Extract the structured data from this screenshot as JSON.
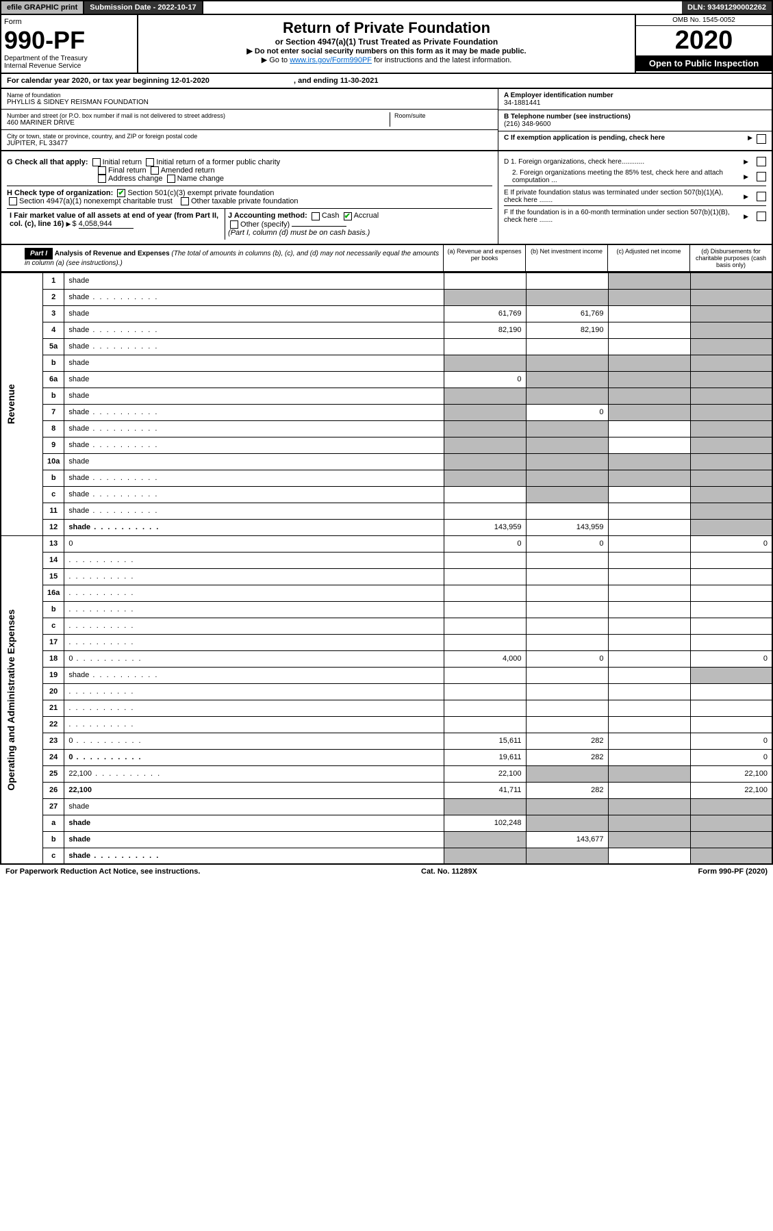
{
  "top": {
    "efile": "efile GRAPHIC print",
    "submission": "Submission Date - 2022-10-17",
    "dln": "DLN: 93491290002262"
  },
  "header": {
    "form_label": "Form",
    "form_no": "990-PF",
    "dept": "Department of the Treasury\nInternal Revenue Service",
    "title": "Return of Private Foundation",
    "subtitle": "or Section 4947(a)(1) Trust Treated as Private Foundation",
    "note1": "▶ Do not enter social security numbers on this form as it may be made public.",
    "note2_pre": "▶ Go to ",
    "note2_link": "www.irs.gov/Form990PF",
    "note2_post": " for instructions and the latest information.",
    "omb": "OMB No. 1545-0052",
    "year": "2020",
    "open": "Open to Public Inspection"
  },
  "cal": {
    "text_pre": "For calendar year 2020, or tax year beginning ",
    "begin": "12-01-2020",
    "mid": " , and ending ",
    "end": "11-30-2021"
  },
  "info": {
    "name_lbl": "Name of foundation",
    "name": "PHYLLIS & SIDNEY REISMAN FOUNDATION",
    "addr_lbl": "Number and street (or P.O. box number if mail is not delivered to street address)",
    "addr": "460 MARINER DRIVE",
    "room_lbl": "Room/suite",
    "city_lbl": "City or town, state or province, country, and ZIP or foreign postal code",
    "city": "JUPITER, FL  33477",
    "a_lbl": "A Employer identification number",
    "a_val": "34-1881441",
    "b_lbl": "B Telephone number (see instructions)",
    "b_val": "(216) 348-9600",
    "c_lbl": "C If exemption application is pending, check here"
  },
  "checks": {
    "g_lbl": "G Check all that apply:",
    "g_opts": [
      "Initial return",
      "Initial return of a former public charity",
      "Final return",
      "Amended return",
      "Address change",
      "Name change"
    ],
    "h_lbl": "H Check type of organization:",
    "h_opt1": "Section 501(c)(3) exempt private foundation",
    "h_opt2": "Section 4947(a)(1) nonexempt charitable trust",
    "h_opt3": "Other taxable private foundation",
    "i_lbl": "I Fair market value of all assets at end of year (from Part II, col. (c), line 16)",
    "i_val": "4,058,944",
    "j_lbl": "J Accounting method:",
    "j_opts": [
      "Cash",
      "Accrual"
    ],
    "j_other": "Other (specify)",
    "j_note": "(Part I, column (d) must be on cash basis.)",
    "d1": "D 1. Foreign organizations, check here............",
    "d2": "2. Foreign organizations meeting the 85% test, check here and attach computation ...",
    "e": "E  If private foundation status was terminated under section 507(b)(1)(A), check here .......",
    "f": "F  If the foundation is in a 60-month termination under section 507(b)(1)(B), check here ......."
  },
  "part1": {
    "label": "Part I",
    "title": "Analysis of Revenue and Expenses",
    "title_note": "(The total of amounts in columns (b), (c), and (d) may not necessarily equal the amounts in column (a) (see instructions).)",
    "col_a": "(a)   Revenue and expenses per books",
    "col_b": "(b)   Net investment income",
    "col_c": "(c)   Adjusted net income",
    "col_d": "(d)   Disbursements for charitable purposes (cash basis only)"
  },
  "side_labels": {
    "revenue": "Revenue",
    "expenses": "Operating and Administrative Expenses"
  },
  "rows": [
    {
      "n": "1",
      "d": "shade",
      "a": "",
      "b": "",
      "c": "shade"
    },
    {
      "n": "2",
      "d": "shade",
      "a": "shade",
      "b": "shade",
      "c": "shade",
      "dots": true
    },
    {
      "n": "3",
      "d": "shade",
      "a": "61,769",
      "b": "61,769",
      "c": ""
    },
    {
      "n": "4",
      "d": "shade",
      "a": "82,190",
      "b": "82,190",
      "c": "",
      "dots": true
    },
    {
      "n": "5a",
      "d": "shade",
      "a": "",
      "b": "",
      "c": "",
      "dots": true
    },
    {
      "n": "b",
      "d": "shade",
      "a": "shade",
      "b": "shade",
      "c": "shade"
    },
    {
      "n": "6a",
      "d": "shade",
      "a": "0",
      "b": "shade",
      "c": "shade"
    },
    {
      "n": "b",
      "d": "shade",
      "a": "shade",
      "b": "shade",
      "c": "shade"
    },
    {
      "n": "7",
      "d": "shade",
      "a": "shade",
      "b": "0",
      "c": "shade",
      "dots": true
    },
    {
      "n": "8",
      "d": "shade",
      "a": "shade",
      "b": "shade",
      "c": "",
      "dots": true
    },
    {
      "n": "9",
      "d": "shade",
      "a": "shade",
      "b": "shade",
      "c": "",
      "dots": true
    },
    {
      "n": "10a",
      "d": "shade",
      "a": "shade",
      "b": "shade",
      "c": "shade"
    },
    {
      "n": "b",
      "d": "shade",
      "a": "shade",
      "b": "shade",
      "c": "shade",
      "dots": true
    },
    {
      "n": "c",
      "d": "shade",
      "a": "",
      "b": "shade",
      "c": "",
      "dots": true
    },
    {
      "n": "11",
      "d": "shade",
      "a": "",
      "b": "",
      "c": "",
      "dots": true
    },
    {
      "n": "12",
      "d": "shade",
      "a": "143,959",
      "b": "143,959",
      "c": "",
      "bold": true,
      "dots": true
    }
  ],
  "rows2": [
    {
      "n": "13",
      "d": "0",
      "a": "0",
      "b": "0",
      "c": ""
    },
    {
      "n": "14",
      "d": "",
      "a": "",
      "b": "",
      "c": "",
      "dots": true
    },
    {
      "n": "15",
      "d": "",
      "a": "",
      "b": "",
      "c": "",
      "dots": true
    },
    {
      "n": "16a",
      "d": "",
      "a": "",
      "b": "",
      "c": "",
      "dots": true
    },
    {
      "n": "b",
      "d": "",
      "a": "",
      "b": "",
      "c": "",
      "dots": true
    },
    {
      "n": "c",
      "d": "",
      "a": "",
      "b": "",
      "c": "",
      "dots": true
    },
    {
      "n": "17",
      "d": "",
      "a": "",
      "b": "",
      "c": "",
      "dots": true
    },
    {
      "n": "18",
      "d": "0",
      "a": "4,000",
      "b": "0",
      "c": "",
      "dots": true
    },
    {
      "n": "19",
      "d": "shade",
      "a": "",
      "b": "",
      "c": "",
      "dots": true
    },
    {
      "n": "20",
      "d": "",
      "a": "",
      "b": "",
      "c": "",
      "dots": true
    },
    {
      "n": "21",
      "d": "",
      "a": "",
      "b": "",
      "c": "",
      "dots": true
    },
    {
      "n": "22",
      "d": "",
      "a": "",
      "b": "",
      "c": "",
      "dots": true
    },
    {
      "n": "23",
      "d": "0",
      "a": "15,611",
      "b": "282",
      "c": "",
      "dots": true
    },
    {
      "n": "24",
      "d": "0",
      "a": "19,611",
      "b": "282",
      "c": "",
      "bold": true,
      "dots": true
    },
    {
      "n": "25",
      "d": "22,100",
      "a": "22,100",
      "b": "shade",
      "c": "shade",
      "dots": true
    },
    {
      "n": "26",
      "d": "22,100",
      "a": "41,711",
      "b": "282",
      "c": "",
      "bold": true
    },
    {
      "n": "27",
      "d": "shade",
      "a": "shade",
      "b": "shade",
      "c": "shade"
    },
    {
      "n": "a",
      "d": "shade",
      "a": "102,248",
      "b": "shade",
      "c": "shade",
      "bold": true
    },
    {
      "n": "b",
      "d": "shade",
      "a": "shade",
      "b": "143,677",
      "c": "shade",
      "bold": true
    },
    {
      "n": "c",
      "d": "shade",
      "a": "shade",
      "b": "shade",
      "c": "",
      "bold": true,
      "dots": true
    }
  ],
  "footer": {
    "left": "For Paperwork Reduction Act Notice, see instructions.",
    "mid": "Cat. No. 11289X",
    "right": "Form 990-PF (2020)"
  },
  "colors": {
    "shade": "#bbbbbb",
    "dark": "#333333",
    "link": "#0066cc",
    "check": "#00aa00"
  }
}
